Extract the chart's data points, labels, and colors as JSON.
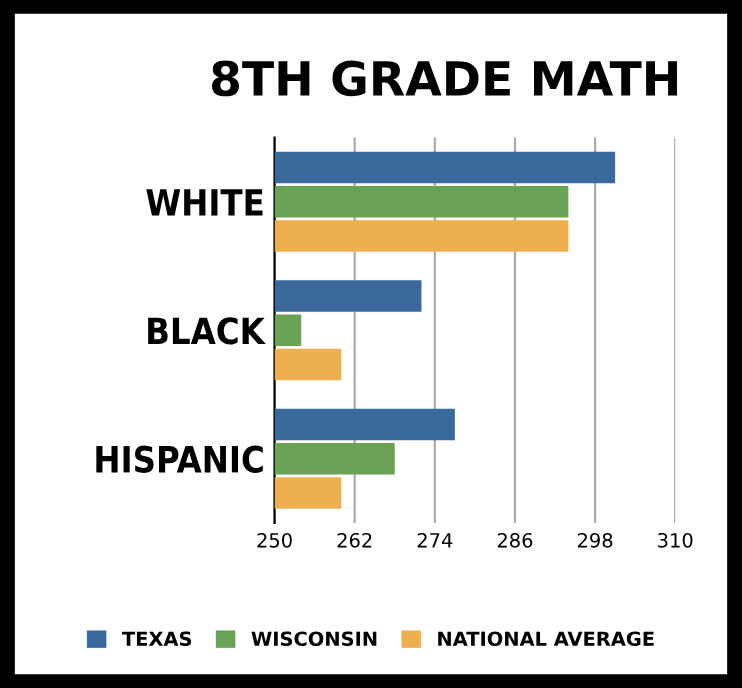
{
  "chart_data": {
    "type": "bar",
    "orientation": "horizontal",
    "title": "8TH GRADE MATH",
    "categories": [
      "WHITE",
      "BLACK",
      "HISPANIC"
    ],
    "series": [
      {
        "name": "TEXAS",
        "color": "#3a6a9c",
        "values": [
          301,
          272,
          277
        ]
      },
      {
        "name": "WISCONSIN",
        "color": "#6aa255",
        "values": [
          294,
          254,
          268
        ]
      },
      {
        "name": "NATIONAL AVERAGE",
        "color": "#eeaf4e",
        "values": [
          294,
          260,
          260
        ]
      }
    ],
    "xlim": [
      250,
      310
    ],
    "xticks": [
      250,
      262,
      274,
      286,
      298,
      310
    ],
    "grid": "x",
    "legend": "bottom"
  }
}
